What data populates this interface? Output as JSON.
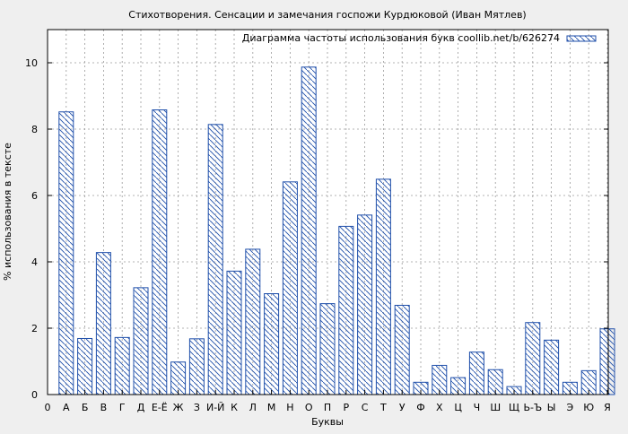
{
  "chart_data": {
    "type": "bar",
    "title": "Стихотворения. Сенсации и замечания госпожи Курдюковой (Иван Мятлев)",
    "xlabel": "Буквы",
    "ylabel": "% использования в тексте",
    "legend": {
      "label": "Диаграмма частоты использования букв coollib.net/b/626274",
      "placement": "top-right"
    },
    "ylim": [
      0,
      11
    ],
    "yticks": [
      0,
      2,
      4,
      6,
      8,
      10
    ],
    "grid": true,
    "x_origin_label": "0",
    "categories": [
      "А",
      "Б",
      "В",
      "Г",
      "Д",
      "Е-Ё",
      "Ж",
      "З",
      "И-Й",
      "К",
      "Л",
      "М",
      "Н",
      "О",
      "П",
      "Р",
      "С",
      "Т",
      "У",
      "Ф",
      "Х",
      "Ц",
      "Ч",
      "Ш",
      "Щ",
      "Ь-Ъ",
      "Ы",
      "Э",
      "Ю",
      "Я"
    ],
    "values": [
      8.52,
      1.69,
      4.28,
      1.72,
      3.22,
      8.58,
      0.98,
      1.68,
      8.14,
      3.72,
      4.38,
      3.04,
      6.41,
      9.87,
      2.74,
      5.07,
      5.41,
      6.49,
      2.69,
      0.37,
      0.88,
      0.51,
      1.28,
      0.75,
      0.24,
      2.17,
      1.64,
      0.37,
      0.72,
      1.98
    ],
    "bar_color": "#1f4faa",
    "background": "#efefef",
    "plot_background": "#ffffff"
  }
}
